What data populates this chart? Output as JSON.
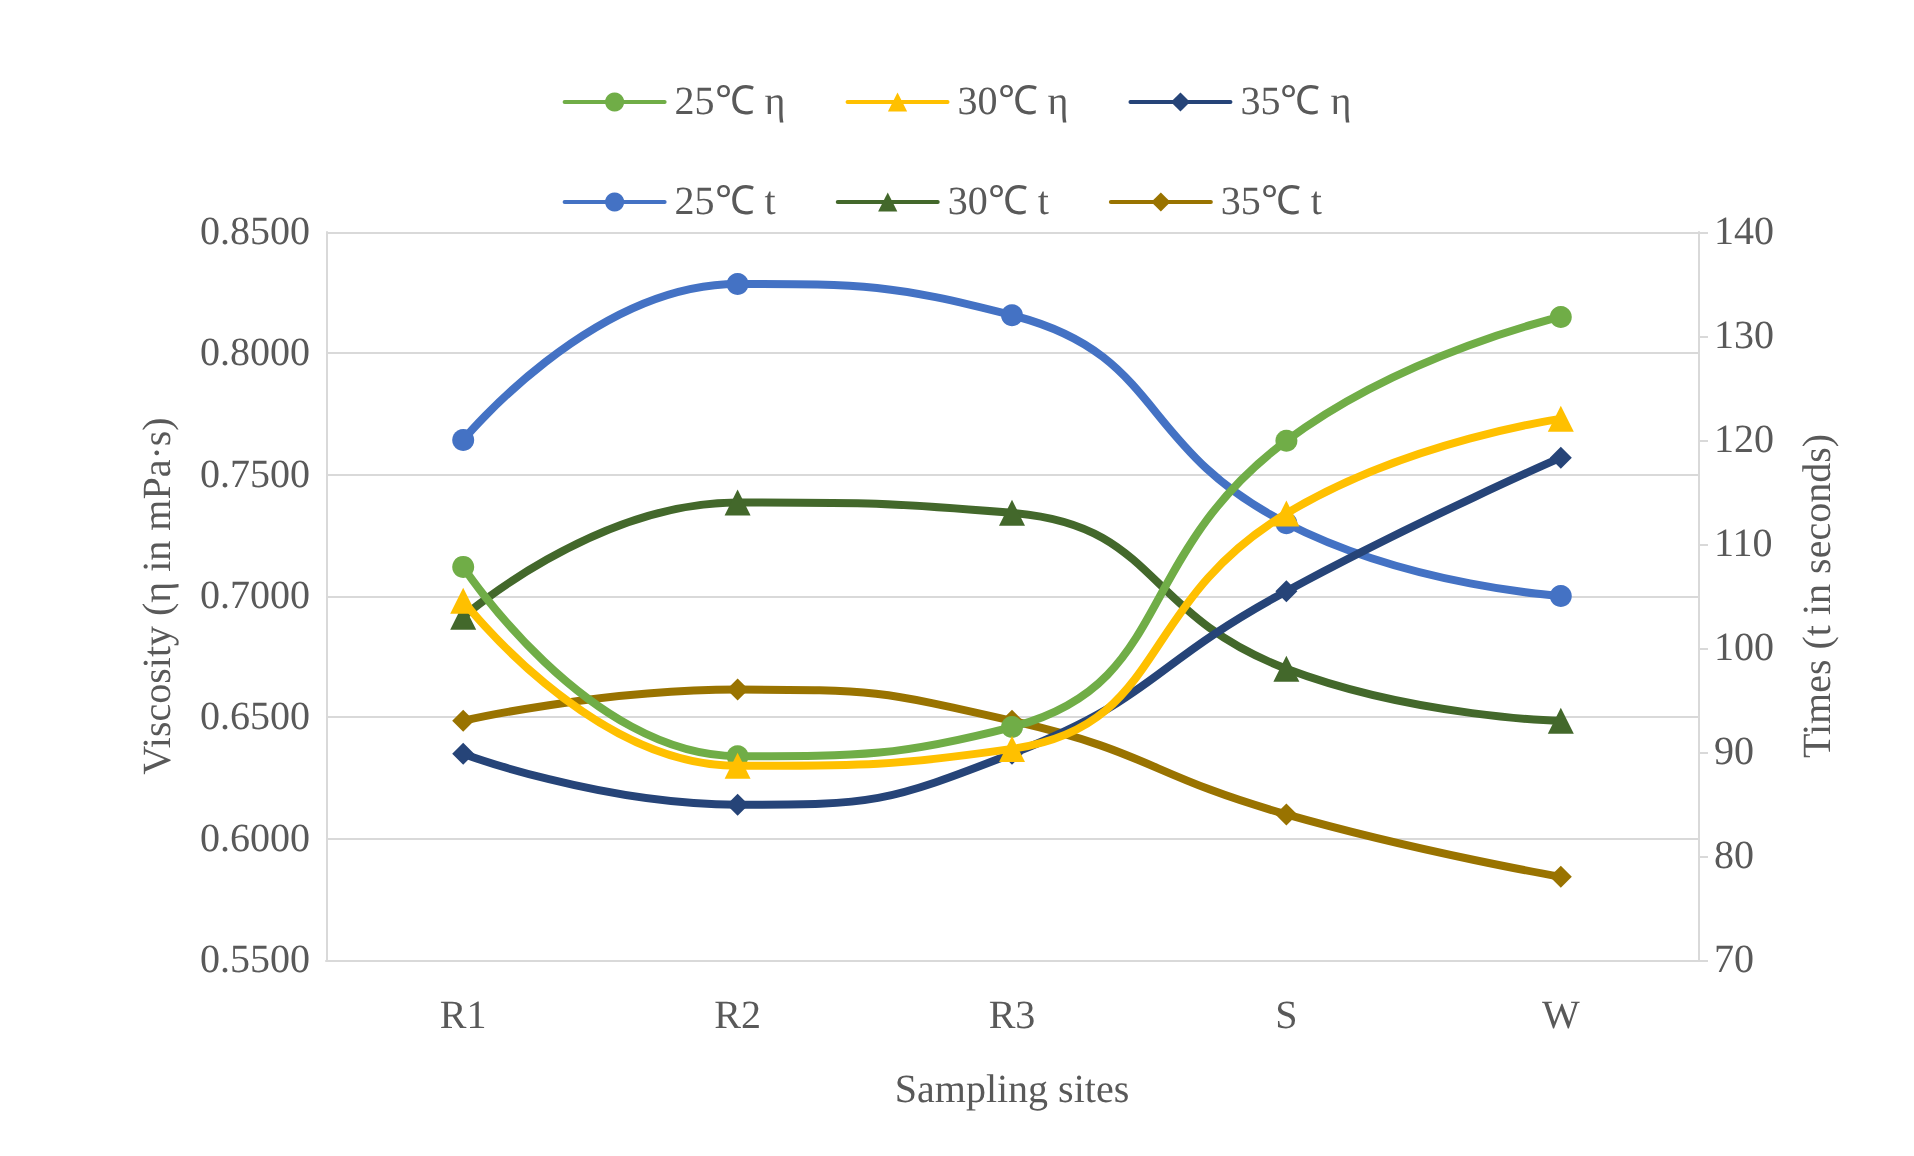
{
  "chart_data": {
    "type": "line",
    "xlabel": "Sampling sites",
    "ylabel": "Viscosity (η in mPa·s)",
    "y2label": "Times (t in seconds)",
    "categories": [
      "R1",
      "R2",
      "R3",
      "S",
      "W"
    ],
    "series": [
      {
        "name": "25℃ η",
        "color": "#70ad47",
        "marker": "circle",
        "values": [
          0.712,
          0.634,
          0.646,
          0.764,
          0.815
        ]
      },
      {
        "name": "30℃ η",
        "color": "#ffc000",
        "marker": "triangle",
        "values": [
          0.698,
          0.63,
          0.637,
          0.734,
          0.773
        ]
      },
      {
        "name": "35℃ η",
        "color": "#264478",
        "marker": "diamond",
        "values": [
          0.635,
          0.614,
          0.635,
          0.702,
          0.757
        ]
      },
      {
        "name": "25℃ t",
        "color": "#4472c4",
        "marker": "circle",
        "axis": "y2",
        "values": [
          120,
          135,
          132,
          112,
          105
        ]
      },
      {
        "name": "30℃ t",
        "color": "#43682b",
        "marker": "triangle",
        "axis": "y2",
        "values": [
          103,
          114,
          113,
          98,
          93
        ]
      },
      {
        "name": "35℃ t",
        "color": "#997300",
        "marker": "diamond",
        "axis": "y2",
        "values": [
          93,
          96,
          93,
          84,
          78
        ]
      }
    ],
    "ylim": [
      0.55,
      0.85
    ],
    "yticks": [
      {
        "value": 0.55,
        "label": "0.5500"
      },
      {
        "value": 0.6,
        "label": "0.6000"
      },
      {
        "value": 0.65,
        "label": "0.6500"
      },
      {
        "value": 0.7,
        "label": "0.7000"
      },
      {
        "value": 0.75,
        "label": "0.7500"
      },
      {
        "value": 0.8,
        "label": "0.8000"
      },
      {
        "value": 0.85,
        "label": "0.8500"
      }
    ],
    "y2lim": [
      70,
      140
    ],
    "y2ticks": [
      70,
      80,
      90,
      100,
      110,
      120,
      130,
      140
    ],
    "grid": "y",
    "legend": "top",
    "line_style": "solid"
  }
}
